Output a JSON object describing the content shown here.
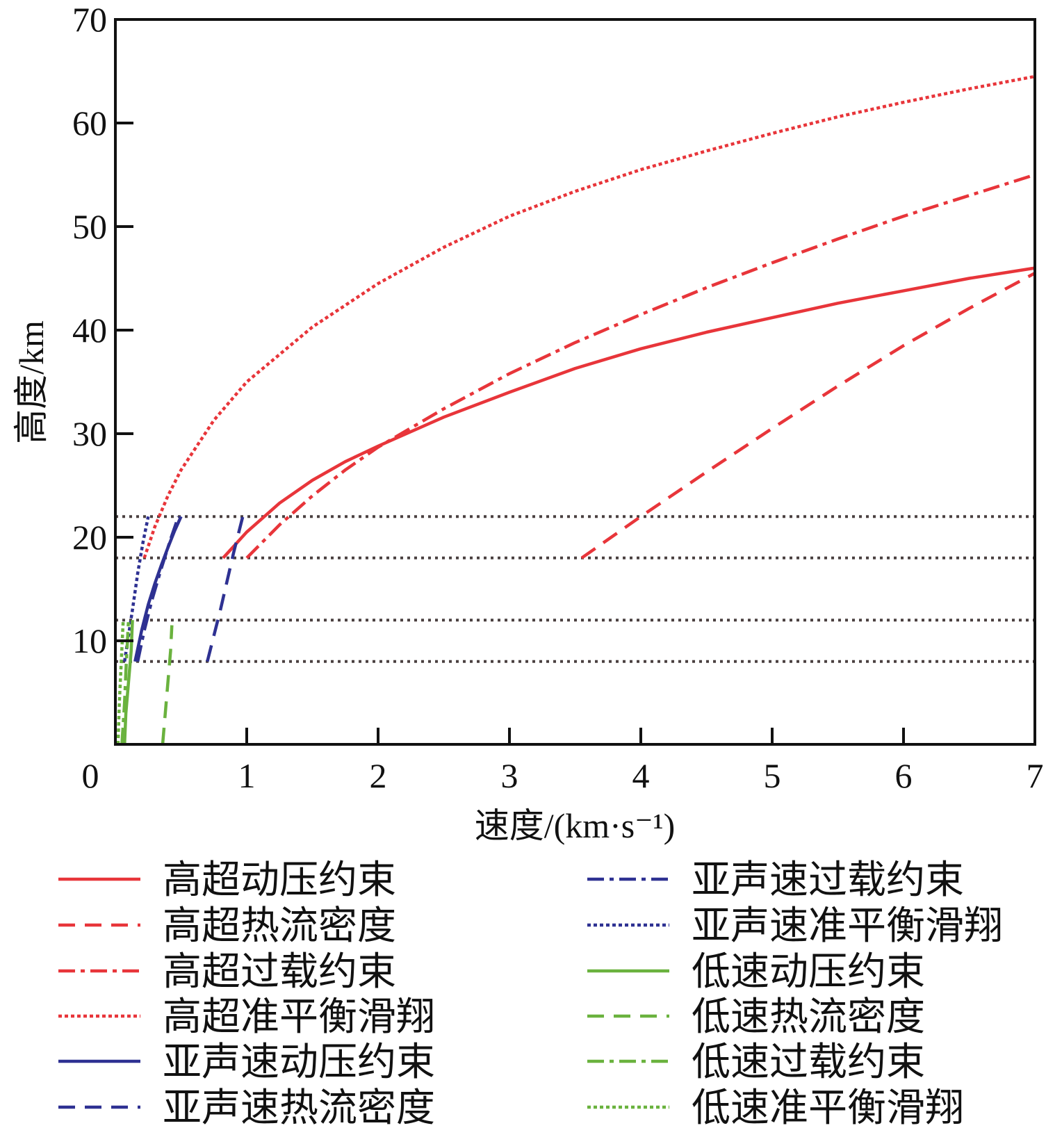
{
  "chart_data": {
    "type": "line",
    "title": "",
    "xlabel": "速度/(km·s⁻¹)",
    "ylabel": "高度/km",
    "xlim": [
      0,
      7
    ],
    "ylim": [
      0,
      70
    ],
    "xticks": [
      "0",
      "1",
      "2",
      "3",
      "4",
      "5",
      "6",
      "7"
    ],
    "yticks": [
      "10",
      "20",
      "30",
      "40",
      "50",
      "60",
      "70"
    ],
    "reference_lines_y": [
      8,
      12,
      18,
      22
    ],
    "reference_line_color": "#4a4040",
    "grid": false,
    "legend_position": "bottom (two columns)",
    "series": [
      {
        "name": "高超动压约束",
        "color": "#e8353a",
        "style": "solid",
        "points": [
          [
            0.82,
            18
          ],
          [
            1,
            20.5
          ],
          [
            1.25,
            23.3
          ],
          [
            1.5,
            25.5
          ],
          [
            1.75,
            27.3
          ],
          [
            2,
            28.8
          ],
          [
            2.5,
            31.6
          ],
          [
            3,
            34
          ],
          [
            3.5,
            36.3
          ],
          [
            4,
            38.2
          ],
          [
            4.5,
            39.8
          ],
          [
            5,
            41.2
          ],
          [
            5.5,
            42.6
          ],
          [
            6,
            43.8
          ],
          [
            6.5,
            45
          ],
          [
            7,
            46
          ]
        ]
      },
      {
        "name": "高超热流密度",
        "color": "#e8353a",
        "style": "dashed",
        "points": [
          [
            3.55,
            18
          ],
          [
            4,
            22
          ],
          [
            4.5,
            26.3
          ],
          [
            5,
            30.5
          ],
          [
            5.5,
            34.6
          ],
          [
            6,
            38.5
          ],
          [
            6.5,
            42.1
          ],
          [
            7,
            45.5
          ]
        ]
      },
      {
        "name": "高超过载约束",
        "color": "#e8353a",
        "style": "dashdot",
        "points": [
          [
            1,
            18
          ],
          [
            1.25,
            21.2
          ],
          [
            1.5,
            24
          ],
          [
            1.75,
            26.5
          ],
          [
            2,
            28.7
          ],
          [
            2.5,
            32.4
          ],
          [
            3,
            35.8
          ],
          [
            3.5,
            38.8
          ],
          [
            4,
            41.5
          ],
          [
            4.5,
            44.1
          ],
          [
            5,
            46.5
          ],
          [
            5.5,
            48.8
          ],
          [
            6,
            51
          ],
          [
            6.5,
            53
          ],
          [
            7,
            55
          ]
        ]
      },
      {
        "name": "高超准平衡滑翔",
        "color": "#e8353a",
        "style": "dotted",
        "points": [
          [
            0.22,
            18
          ],
          [
            0.3,
            21
          ],
          [
            0.4,
            24
          ],
          [
            0.5,
            26.5
          ],
          [
            0.75,
            31.3
          ],
          [
            1,
            35
          ],
          [
            1.5,
            40.3
          ],
          [
            2,
            44.5
          ],
          [
            2.5,
            48
          ],
          [
            3,
            51
          ],
          [
            3.5,
            53.4
          ],
          [
            4,
            55.5
          ],
          [
            4.5,
            57.3
          ],
          [
            5,
            59
          ],
          [
            5.5,
            60.6
          ],
          [
            6,
            62
          ],
          [
            6.5,
            63.3
          ],
          [
            7,
            64.5
          ]
        ]
      },
      {
        "name": "亚声速动压约束",
        "color": "#2e3192",
        "style": "solid",
        "points": [
          [
            0.15,
            8
          ],
          [
            0.2,
            11
          ],
          [
            0.25,
            13.5
          ],
          [
            0.3,
            15.5
          ],
          [
            0.35,
            17.3
          ],
          [
            0.4,
            19
          ],
          [
            0.45,
            20.6
          ],
          [
            0.5,
            22
          ]
        ]
      },
      {
        "name": "亚声速热流密度",
        "color": "#2e3192",
        "style": "dashed",
        "points": [
          [
            0.7,
            8
          ],
          [
            0.8,
            13
          ],
          [
            0.9,
            18.5
          ],
          [
            0.97,
            22
          ]
        ]
      },
      {
        "name": "亚声速过载约束",
        "color": "#2e3192",
        "style": "dashdot",
        "points": [
          [
            0.17,
            8
          ],
          [
            0.22,
            11
          ],
          [
            0.28,
            14
          ],
          [
            0.35,
            17
          ],
          [
            0.42,
            19.8
          ],
          [
            0.48,
            22
          ]
        ]
      },
      {
        "name": "亚声速准平衡滑翔",
        "color": "#2e3192",
        "style": "dotted",
        "points": [
          [
            0.07,
            8
          ],
          [
            0.1,
            10.5
          ],
          [
            0.13,
            13
          ],
          [
            0.17,
            16.5
          ],
          [
            0.21,
            19.5
          ],
          [
            0.25,
            22
          ]
        ]
      },
      {
        "name": "低速动压约束",
        "color": "#6ab23e",
        "style": "solid",
        "points": [
          [
            0.07,
            0
          ],
          [
            0.08,
            3
          ],
          [
            0.1,
            6
          ],
          [
            0.12,
            9
          ],
          [
            0.13,
            12
          ]
        ]
      },
      {
        "name": "低速热流密度",
        "color": "#6ab23e",
        "style": "dashed",
        "points": [
          [
            0.36,
            0
          ],
          [
            0.38,
            3
          ],
          [
            0.4,
            6
          ],
          [
            0.42,
            9
          ],
          [
            0.43,
            11.5
          ]
        ]
      },
      {
        "name": "低速过载约束",
        "color": "#6ab23e",
        "style": "dashdot",
        "points": [
          [
            0.05,
            0
          ],
          [
            0.07,
            4
          ],
          [
            0.08,
            7
          ],
          [
            0.1,
            12
          ]
        ]
      },
      {
        "name": "低速准平衡滑翔",
        "color": "#6ab23e",
        "style": "dotted",
        "points": [
          [
            0.02,
            0
          ],
          [
            0.03,
            4
          ],
          [
            0.045,
            8
          ],
          [
            0.06,
            12
          ]
        ]
      }
    ]
  }
}
